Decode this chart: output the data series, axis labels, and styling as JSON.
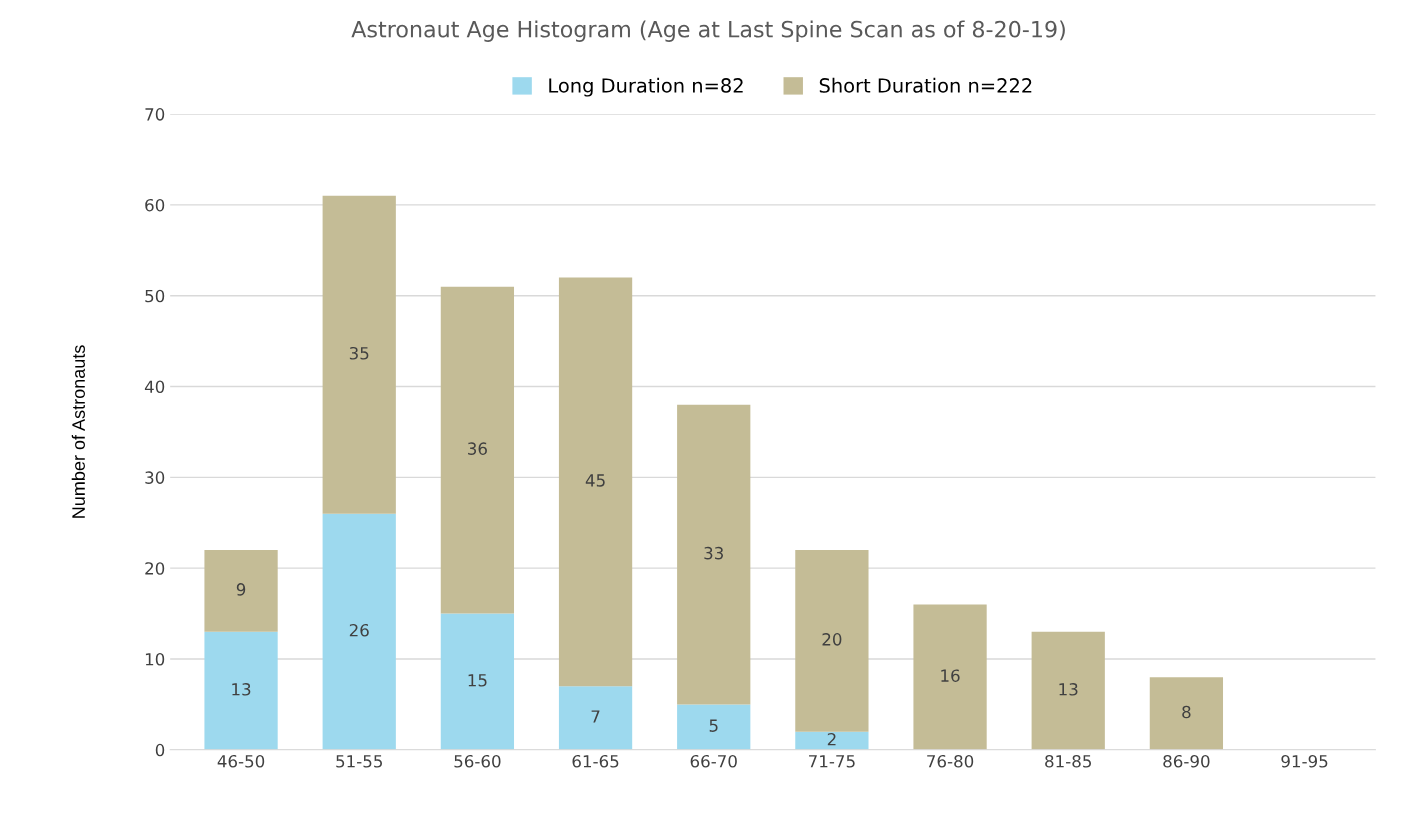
{
  "chart_data": {
    "type": "bar",
    "stacked": true,
    "title": "Astronaut Age Histogram (Age at Last Spine Scan as of 8-20-19)",
    "ylabel": "Number of Astronauts",
    "categories": [
      "46-50",
      "51-55",
      "56-60",
      "61-65",
      "66-70",
      "71-75",
      "76-80",
      "81-85",
      "86-90",
      "91-95"
    ],
    "series": [
      {
        "name": "Long Duration n=82",
        "color": "#9dd9ee",
        "values": [
          13,
          26,
          15,
          7,
          5,
          2,
          0,
          0,
          0,
          0
        ],
        "value_labels": [
          "13",
          "26",
          "15",
          "7",
          "5",
          "2",
          null,
          null,
          null,
          null
        ]
      },
      {
        "name": "Short Duration n=222",
        "color": "#c4bc96",
        "values": [
          9,
          35,
          36,
          45,
          33,
          20,
          16,
          13,
          8,
          0
        ],
        "value_labels": [
          "9",
          "35",
          "36",
          "45",
          "33",
          "20",
          "16",
          "13",
          "8",
          null
        ]
      }
    ],
    "ylim": [
      0,
      70
    ],
    "yticks": [
      0,
      10,
      20,
      30,
      40,
      50,
      60,
      70
    ],
    "grid": "y",
    "legend": "top"
  }
}
